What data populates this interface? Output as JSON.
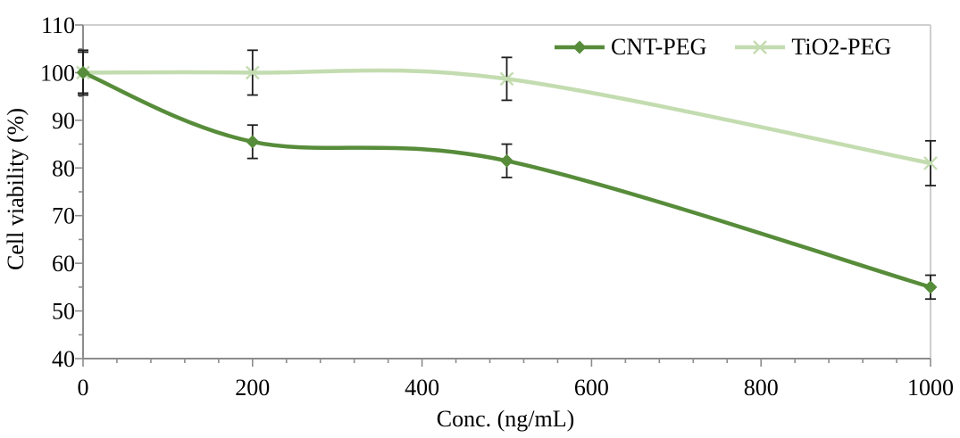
{
  "chart_data": {
    "type": "line",
    "title": "",
    "xlabel": "Conc. (ng/mL)",
    "ylabel": "Cell viability (%)",
    "xlim": [
      0,
      1000
    ],
    "ylim": [
      40,
      110
    ],
    "x_major_ticks": [
      0,
      200,
      400,
      600,
      800,
      1000
    ],
    "x_minor_step": 40,
    "y_major_step": 10,
    "y_minor_step": 5,
    "grid": false,
    "legend_position": "top-right",
    "x": [
      0,
      200,
      500,
      1000
    ],
    "series": [
      {
        "name": "CNT-PEG",
        "marker": "diamond",
        "color": "#578c3a",
        "values": [
          100,
          85.5,
          81.5,
          55
        ],
        "errors": [
          4.3,
          3.5,
          3.5,
          2.5
        ]
      },
      {
        "name": "TiO2-PEG",
        "marker": "x",
        "color": "#c3dcb0",
        "values": [
          100,
          100,
          98.7,
          81
        ],
        "errors": [
          4.7,
          4.7,
          4.5,
          4.7
        ]
      }
    ],
    "style": {
      "axis_color": "#8c8c8c",
      "border_color": "#c8c8c8",
      "errorbar_color": "#1f1f1f",
      "text_color": "#000000",
      "background": "#ffffff"
    }
  }
}
